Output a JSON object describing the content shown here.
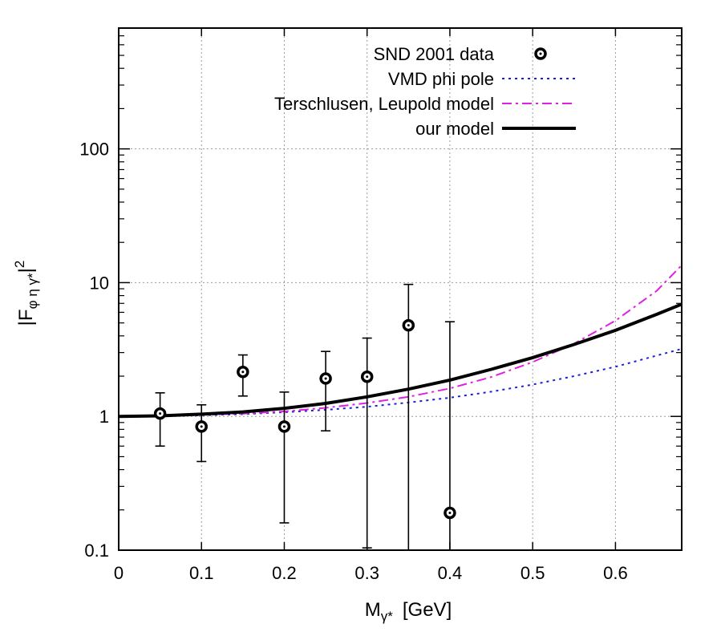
{
  "chart_data": {
    "type": "scatter",
    "xlabel": {
      "main": "M",
      "sub": "γ*",
      "unit": "[GeV]"
    },
    "ylabel": {
      "pre": "|F",
      "sub": "φ η γ*",
      "post": "|",
      "sup": "2"
    },
    "x_ticks": [
      "0",
      "0.1",
      "0.2",
      "0.3",
      "0.4",
      "0.5",
      "0.6"
    ],
    "y_ticks": [
      "0.1",
      "1",
      "10",
      "100"
    ],
    "xlim": [
      0,
      0.68
    ],
    "ylim": [
      0.1,
      800
    ],
    "yscale": "log",
    "grid": true,
    "legend_position": "top-right",
    "series": [
      {
        "name": "SND 2001 data",
        "kind": "points",
        "color": "#000000",
        "x": [
          0.05,
          0.1,
          0.15,
          0.2,
          0.25,
          0.3,
          0.35,
          0.4
        ],
        "y": [
          1.05,
          0.84,
          2.15,
          0.84,
          1.92,
          1.98,
          4.8,
          0.19
        ],
        "y_low": [
          0.6,
          0.46,
          1.42,
          0.16,
          0.78,
          0.104,
          0.1,
          0.1
        ],
        "y_high": [
          1.5,
          1.22,
          2.88,
          1.52,
          3.06,
          3.85,
          9.7,
          5.1
        ]
      },
      {
        "name": "VMD phi pole",
        "kind": "line",
        "style": "dotted",
        "color": "#1f1fd6",
        "x": [
          0,
          0.05,
          0.1,
          0.15,
          0.2,
          0.25,
          0.3,
          0.35,
          0.4,
          0.45,
          0.5,
          0.55,
          0.6,
          0.65,
          0.68
        ],
        "y": [
          1.0,
          1.005,
          1.02,
          1.04,
          1.075,
          1.12,
          1.18,
          1.27,
          1.38,
          1.53,
          1.73,
          2.0,
          2.35,
          2.85,
          3.2
        ]
      },
      {
        "name": "Terschlusen, Leupold model",
        "kind": "line",
        "style": "dashdot",
        "color": "#e020e0",
        "x": [
          0,
          0.05,
          0.1,
          0.15,
          0.2,
          0.25,
          0.3,
          0.35,
          0.4,
          0.45,
          0.5,
          0.55,
          0.6,
          0.65,
          0.68
        ],
        "y": [
          1.0,
          1.005,
          1.025,
          1.05,
          1.09,
          1.16,
          1.26,
          1.4,
          1.62,
          1.97,
          2.55,
          3.5,
          5.2,
          8.7,
          13.5
        ]
      },
      {
        "name": "our model",
        "kind": "line",
        "style": "solid",
        "color": "#000000",
        "x": [
          0,
          0.05,
          0.1,
          0.15,
          0.2,
          0.25,
          0.3,
          0.35,
          0.4,
          0.45,
          0.5,
          0.55,
          0.6,
          0.65,
          0.68
        ],
        "y": [
          1.0,
          1.01,
          1.04,
          1.08,
          1.15,
          1.25,
          1.4,
          1.6,
          1.87,
          2.25,
          2.75,
          3.45,
          4.4,
          5.8,
          6.9
        ]
      }
    ]
  }
}
